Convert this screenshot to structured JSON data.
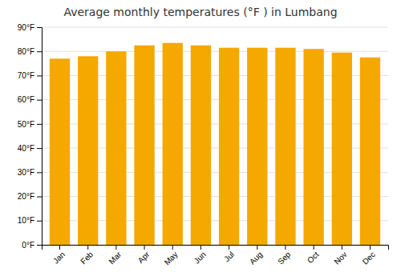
{
  "chart_data": {
    "type": "bar",
    "title": "Average monthly temperatures (°F ) in Lumbang",
    "categories": [
      "Jan",
      "Feb",
      "Mar",
      "Apr",
      "May",
      "Jun",
      "Jul",
      "Aug",
      "Sep",
      "Oct",
      "Nov",
      "Dec"
    ],
    "values": [
      77.0,
      78.0,
      80.0,
      82.5,
      83.5,
      82.5,
      81.5,
      81.5,
      81.5,
      81.0,
      79.5,
      77.5
    ],
    "color": "#F5A800",
    "ylim": [
      0,
      90
    ],
    "yticks": [
      {
        "value": 0,
        "label": "0°F"
      },
      {
        "value": 10,
        "label": "10°F"
      },
      {
        "value": 20,
        "label": "20°F"
      },
      {
        "value": 30,
        "label": "30°F"
      },
      {
        "value": 40,
        "label": "40°F"
      },
      {
        "value": 50,
        "label": "50°F"
      },
      {
        "value": 60,
        "label": "60°F"
      },
      {
        "value": 70,
        "label": "70°F"
      },
      {
        "value": 80,
        "label": "80°F"
      },
      {
        "value": 90,
        "label": "90°F"
      }
    ],
    "grid": true
  }
}
